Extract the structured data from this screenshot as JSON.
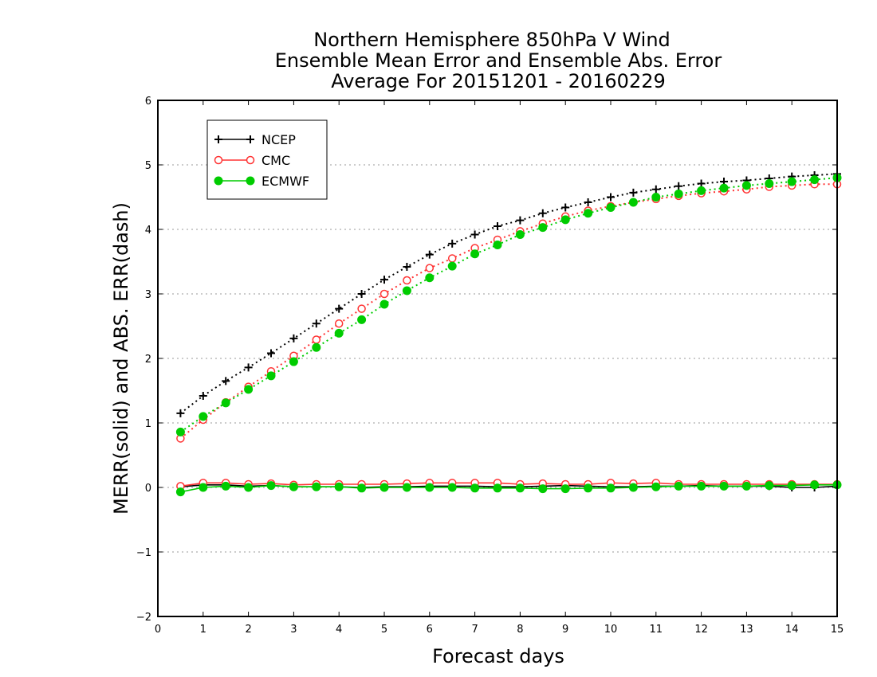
{
  "chart_data": {
    "type": "line",
    "title": [
      "Northern Hemisphere 850hPa V Wind",
      "Ensemble Mean Error and Ensemble Abs. Error",
      "Average For 20151201 - 20160229"
    ],
    "xlabel": "Forecast days",
    "ylabel": "MERR(solid) and ABS. ERR(dash)",
    "xlim": [
      0,
      15
    ],
    "ylim": [
      -2,
      6
    ],
    "xticks": [
      0,
      1,
      2,
      3,
      4,
      5,
      6,
      7,
      8,
      9,
      10,
      11,
      12,
      13,
      14,
      15
    ],
    "yticks": [
      -2,
      -1,
      0,
      1,
      2,
      3,
      4,
      5,
      6
    ],
    "grid": "horizontal-dotted",
    "legend": {
      "placement": "top-left",
      "entries": [
        "NCEP",
        "CMC",
        "ECMWF"
      ]
    },
    "x": [
      0.5,
      1,
      1.5,
      2,
      2.5,
      3,
      3.5,
      4,
      4.5,
      5,
      5.5,
      6,
      6.5,
      7,
      7.5,
      8,
      8.5,
      9,
      9.5,
      10,
      10.5,
      11,
      11.5,
      12,
      12.5,
      13,
      13.5,
      14,
      14.5,
      15
    ],
    "series": [
      {
        "name": "NCEP",
        "color": "#000000",
        "marker": "plus",
        "abs_err": [
          1.15,
          1.42,
          1.65,
          1.86,
          2.08,
          2.31,
          2.54,
          2.77,
          3.0,
          3.22,
          3.42,
          3.61,
          3.78,
          3.92,
          4.05,
          4.14,
          4.25,
          4.34,
          4.42,
          4.5,
          4.57,
          4.62,
          4.67,
          4.71,
          4.74,
          4.76,
          4.79,
          4.82,
          4.84,
          4.86
        ],
        "mean_err": [
          0.01,
          0.04,
          0.04,
          0.02,
          0.03,
          0.01,
          0.01,
          0.01,
          0.0,
          0.01,
          0.01,
          0.02,
          0.02,
          0.02,
          0.01,
          0.01,
          0.02,
          0.03,
          0.02,
          0.01,
          0.01,
          0.02,
          0.02,
          0.03,
          0.02,
          0.02,
          0.02,
          0.0,
          0.0,
          0.02
        ]
      },
      {
        "name": "CMC",
        "color": "#ff3333",
        "marker": "open-circle",
        "abs_err": [
          0.76,
          1.05,
          1.32,
          1.56,
          1.8,
          2.04,
          2.29,
          2.54,
          2.77,
          3.0,
          3.21,
          3.4,
          3.55,
          3.71,
          3.84,
          3.97,
          4.09,
          4.2,
          4.29,
          4.36,
          4.42,
          4.47,
          4.52,
          4.56,
          4.59,
          4.62,
          4.66,
          4.68,
          4.7,
          4.7
        ],
        "mean_err": [
          0.02,
          0.07,
          0.07,
          0.05,
          0.06,
          0.04,
          0.05,
          0.05,
          0.05,
          0.05,
          0.06,
          0.07,
          0.07,
          0.07,
          0.07,
          0.05,
          0.06,
          0.05,
          0.05,
          0.07,
          0.06,
          0.07,
          0.05,
          0.05,
          0.05,
          0.05,
          0.05,
          0.05,
          0.05,
          0.05
        ]
      },
      {
        "name": "ECMWF",
        "color": "#00cc00",
        "marker": "filled-circle",
        "abs_err": [
          0.86,
          1.1,
          1.31,
          1.52,
          1.73,
          1.95,
          2.17,
          2.39,
          2.6,
          2.84,
          3.05,
          3.25,
          3.43,
          3.62,
          3.76,
          3.92,
          4.03,
          4.15,
          4.25,
          4.34,
          4.42,
          4.5,
          4.55,
          4.6,
          4.64,
          4.68,
          4.71,
          4.74,
          4.77,
          4.8
        ],
        "mean_err": [
          -0.07,
          0.0,
          0.02,
          0.0,
          0.03,
          0.01,
          0.01,
          0.01,
          -0.01,
          0.0,
          0.0,
          0.0,
          0.0,
          -0.01,
          -0.01,
          -0.01,
          -0.02,
          -0.02,
          -0.01,
          -0.01,
          0.0,
          0.01,
          0.02,
          0.02,
          0.02,
          0.02,
          0.03,
          0.03,
          0.04,
          0.04
        ]
      }
    ]
  }
}
